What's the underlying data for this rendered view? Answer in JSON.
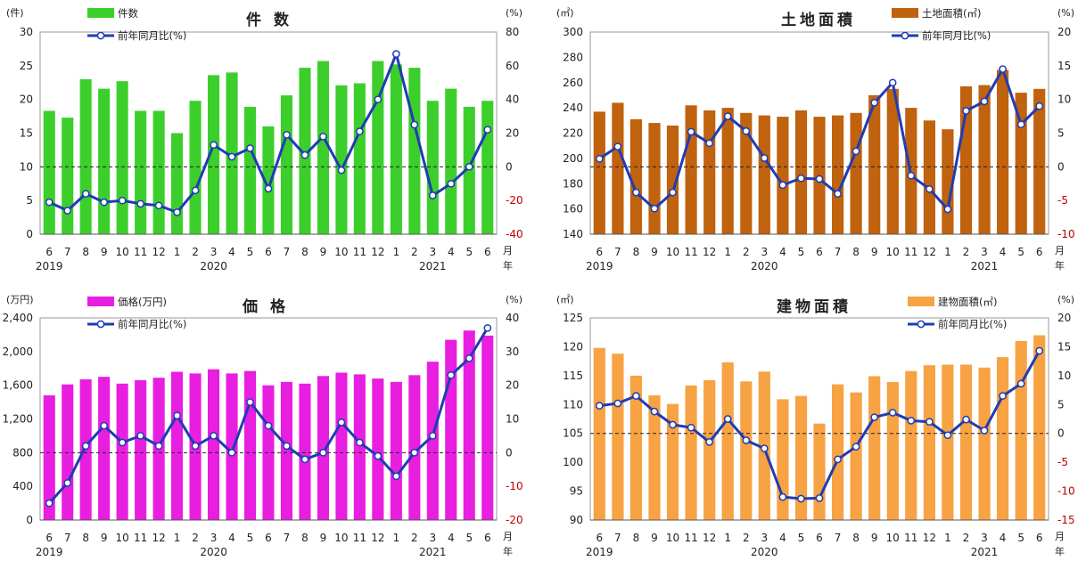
{
  "chart_data": [
    {
      "type": "bar",
      "title": "件 数",
      "bar_color": "#3ccf2c",
      "line_color": "#1f3cb4",
      "left_unit": "(件)",
      "right_unit": "(%)",
      "legend": [
        "件数",
        "前年同月比(%)"
      ],
      "months": [
        "6",
        "7",
        "8",
        "9",
        "10",
        "11",
        "12",
        "1",
        "2",
        "3",
        "4",
        "5",
        "6",
        "7",
        "8",
        "9",
        "10",
        "11",
        "12",
        "1",
        "2",
        "3",
        "4",
        "5",
        "6"
      ],
      "years": [
        "2019",
        "2020",
        "2021"
      ],
      "month_suffix": "月",
      "year_suffix": "年",
      "left_ticks": [
        "0",
        "5",
        "10",
        "15",
        "20",
        "25",
        "30"
      ],
      "left_min": 0,
      "left_max": 30,
      "right_ticks": [
        "-40",
        "-20",
        "0",
        "20",
        "40",
        "60",
        "80"
      ],
      "right_min": -40,
      "right_max": 80,
      "series": [
        {
          "name": "件数",
          "values": [
            18.3,
            17.3,
            23,
            21.6,
            22.7,
            18.3,
            18.3,
            15,
            19.8,
            23.6,
            24,
            18.9,
            16,
            20.6,
            24.7,
            25.7,
            22.1,
            22.4,
            25.7,
            25.2,
            24.7,
            19.8,
            21.6,
            18.9,
            19.8
          ]
        },
        {
          "name": "前年同月比(%)",
          "values": [
            -21,
            -26,
            -16,
            -21,
            -20,
            -22,
            -23,
            -27,
            -14,
            13,
            6,
            11,
            -13,
            19,
            7,
            18,
            -2,
            21,
            40,
            67,
            25,
            -17,
            -10,
            0,
            22
          ]
        }
      ]
    },
    {
      "type": "bar",
      "title": "土地面積",
      "bar_color": "#c0620e",
      "line_color": "#1f3cb4",
      "left_unit": "(㎡)",
      "right_unit": "(%)",
      "legend": [
        "土地面積(㎡)",
        "前年同月比(%)"
      ],
      "months": [
        "6",
        "7",
        "8",
        "9",
        "10",
        "11",
        "12",
        "1",
        "2",
        "3",
        "4",
        "5",
        "6",
        "7",
        "8",
        "9",
        "10",
        "11",
        "12",
        "1",
        "2",
        "3",
        "4",
        "5",
        "6"
      ],
      "years": [
        "2019",
        "2020",
        "2021"
      ],
      "month_suffix": "月",
      "year_suffix": "年",
      "left_ticks": [
        "140",
        "160",
        "180",
        "200",
        "220",
        "240",
        "260",
        "280",
        "300"
      ],
      "left_min": 140,
      "left_max": 300,
      "right_ticks": [
        "-10",
        "-5",
        "0",
        "5",
        "10",
        "15",
        "20"
      ],
      "right_min": -10,
      "right_max": 20,
      "series": [
        {
          "name": "土地面積(㎡)",
          "values": [
            237,
            244,
            231,
            228,
            226,
            242,
            238,
            240,
            236,
            234,
            233,
            238,
            233,
            234,
            236,
            250,
            255,
            240,
            230,
            223,
            257,
            258,
            270,
            252,
            255
          ]
        },
        {
          "name": "前年同月比(%)",
          "values": [
            1.2,
            3,
            -3.8,
            -6.2,
            -3.8,
            5.2,
            3.5,
            7.5,
            5.3,
            1.3,
            -2.7,
            -1.7,
            -1.8,
            -4,
            2.3,
            9.5,
            12.5,
            -1.3,
            -3.3,
            -6.3,
            8.3,
            9.7,
            14.5,
            6.3,
            9
          ]
        }
      ]
    },
    {
      "type": "bar",
      "title": "価 格",
      "bar_color": "#e81ee0",
      "line_color": "#1f3cb4",
      "left_unit": "(万円)",
      "right_unit": "(%)",
      "legend": [
        "価格(万円)",
        "前年同月比(%)"
      ],
      "months": [
        "6",
        "7",
        "8",
        "9",
        "10",
        "11",
        "12",
        "1",
        "2",
        "3",
        "4",
        "5",
        "6",
        "7",
        "8",
        "9",
        "10",
        "11",
        "12",
        "1",
        "2",
        "3",
        "4",
        "5",
        "6"
      ],
      "years": [
        "2019",
        "2020",
        "2021"
      ],
      "month_suffix": "月",
      "year_suffix": "年",
      "left_ticks": [
        "0",
        "400",
        "800",
        "1,200",
        "1,600",
        "2,000",
        "2,400"
      ],
      "left_min": 0,
      "left_max": 2400,
      "right_ticks": [
        "-20",
        "-10",
        "0",
        "10",
        "20",
        "30",
        "40"
      ],
      "right_min": -20,
      "right_max": 40,
      "series": [
        {
          "name": "価格(万円)",
          "values": [
            1480,
            1610,
            1670,
            1700,
            1620,
            1660,
            1690,
            1760,
            1740,
            1790,
            1740,
            1770,
            1600,
            1640,
            1620,
            1710,
            1750,
            1730,
            1680,
            1640,
            1720,
            1880,
            2140,
            2250,
            2190
          ]
        },
        {
          "name": "前年同月比(%)",
          "values": [
            -15,
            -9,
            2,
            8,
            3,
            5,
            2,
            11,
            2,
            5,
            0,
            15,
            8,
            2,
            -2,
            0,
            9,
            3,
            -1,
            -7,
            0,
            5,
            23,
            28,
            37
          ]
        }
      ]
    },
    {
      "type": "bar",
      "title": "建物面積",
      "bar_color": "#f7a243",
      "line_color": "#1f3cb4",
      "left_unit": "(㎡)",
      "right_unit": "(%)",
      "legend": [
        "建物面積(㎡)",
        "前年同月比(%)"
      ],
      "months": [
        "6",
        "7",
        "8",
        "9",
        "10",
        "11",
        "12",
        "1",
        "2",
        "3",
        "4",
        "5",
        "6",
        "7",
        "8",
        "9",
        "10",
        "11",
        "12",
        "1",
        "2",
        "3",
        "4",
        "5",
        "6"
      ],
      "years": [
        "2019",
        "2020",
        "2021"
      ],
      "month_suffix": "月",
      "year_suffix": "年",
      "left_ticks": [
        "90",
        "95",
        "100",
        "105",
        "110",
        "115",
        "120",
        "125"
      ],
      "left_min": 90,
      "left_max": 125,
      "right_ticks": [
        "-15",
        "-10",
        "-5",
        "0",
        "5",
        "10",
        "15",
        "20"
      ],
      "right_min": -15,
      "right_max": 20,
      "series": [
        {
          "name": "建物面積(㎡)",
          "values": [
            119.8,
            118.8,
            115,
            111.6,
            110.1,
            113.3,
            114.2,
            117.3,
            114,
            115.7,
            110.9,
            111.5,
            106.7,
            113.5,
            112.1,
            114.9,
            113.9,
            115.8,
            116.8,
            116.9,
            116.9,
            116.4,
            118.2,
            121,
            122
          ]
        },
        {
          "name": "前年同月比(%)",
          "values": [
            4.8,
            5.2,
            6.5,
            3.8,
            1.5,
            1,
            -1.5,
            2.5,
            -1.2,
            -2.6,
            -11,
            -11.3,
            -11.2,
            -4.5,
            -2.3,
            2.8,
            3.6,
            2.2,
            2,
            -0.3,
            2.4,
            0.5,
            6.5,
            8.6,
            14.3
          ]
        }
      ]
    }
  ]
}
